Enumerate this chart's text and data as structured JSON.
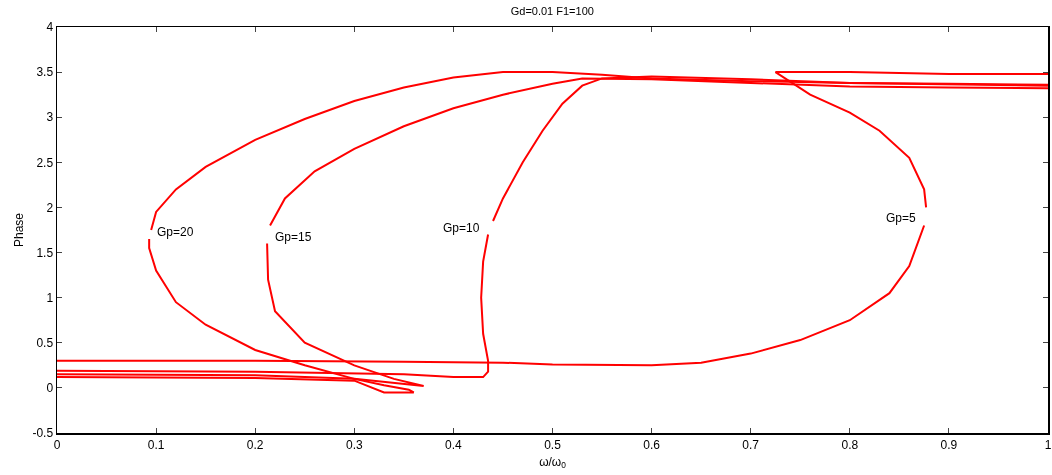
{
  "chart_data": {
    "type": "line",
    "title": "Gd=0.01 F1=100",
    "xlabel": "ω/ω$_{0}$",
    "ylabel": "Phase",
    "xlim": [
      0,
      1
    ],
    "xticks": [
      0,
      0.1,
      0.2,
      0.3,
      0.4,
      0.5,
      0.6,
      0.7,
      0.8,
      0.9,
      1
    ],
    "ylim": [
      -0.5,
      4
    ],
    "yticks": [
      -0.5,
      0,
      0.5,
      1,
      1.5,
      2,
      2.5,
      3,
      3.5,
      4
    ],
    "grid": false,
    "marker": "none",
    "line_style": "solid",
    "series": [
      {
        "color": "#ff0000",
        "x": [
          0,
          0.2,
          0.3,
          0.33,
          0.36,
          0.355,
          0.33,
          0.3,
          0.25,
          0.2,
          0.15,
          0.12,
          0.1,
          0.093,
          0.093,
          null,
          0.095,
          0.1,
          0.12,
          0.15,
          0.2,
          0.25,
          0.3,
          0.35,
          0.4,
          0.45,
          0.5,
          0.55,
          0.6,
          0.7,
          0.8,
          0.9,
          1
        ],
        "values": [
          0.12,
          0.11,
          0.08,
          -0.05,
          -0.05,
          -0.02,
          0.03,
          0.1,
          0.25,
          0.42,
          0.7,
          0.95,
          1.3,
          1.55,
          1.65,
          null,
          1.75,
          1.95,
          2.2,
          2.45,
          2.75,
          2.98,
          3.18,
          3.33,
          3.44,
          3.5,
          3.5,
          3.47,
          3.43,
          3.4,
          3.38,
          3.37,
          3.36
        ]
      },
      {
        "color": "#ff0000",
        "x": [
          0,
          0.2,
          0.3,
          0.37,
          0.34,
          0.3,
          0.25,
          0.22,
          0.213,
          0.212,
          null,
          0.215,
          0.23,
          0.26,
          0.3,
          0.35,
          0.4,
          0.45,
          0.5,
          0.53,
          0.6,
          0.7,
          0.8,
          0.9,
          1
        ],
        "values": [
          0.15,
          0.14,
          0.1,
          0.02,
          0.1,
          0.25,
          0.5,
          0.85,
          1.2,
          1.6,
          null,
          1.8,
          2.1,
          2.4,
          2.65,
          2.9,
          3.1,
          3.25,
          3.37,
          3.43,
          3.42,
          3.38,
          3.34,
          3.33,
          3.32
        ]
      },
      {
        "color": "#ff0000",
        "x": [
          0,
          0.2,
          0.35,
          0.4,
          0.43,
          0.435,
          0.435,
          0.43,
          0.428,
          0.43,
          0.435,
          null,
          0.44,
          0.45,
          0.47,
          0.49,
          0.51,
          0.53,
          0.55,
          0.6,
          0.7,
          0.8,
          1
        ],
        "values": [
          0.19,
          0.18,
          0.15,
          0.12,
          0.12,
          0.18,
          0.3,
          0.6,
          1.0,
          1.4,
          1.7,
          null,
          1.85,
          2.1,
          2.5,
          2.85,
          3.15,
          3.35,
          3.43,
          3.45,
          3.42,
          3.38,
          3.35
        ]
      },
      {
        "color": "#ff0000",
        "x": [
          0,
          0.2,
          0.35,
          0.45,
          0.5,
          0.6,
          0.65,
          0.7,
          0.75,
          0.8,
          0.84,
          0.86,
          0.875,
          null,
          0.877,
          0.875,
          0.86,
          0.83,
          0.8,
          0.76,
          0.725,
          0.8,
          0.9,
          1
        ],
        "values": [
          0.3,
          0.3,
          0.29,
          0.28,
          0.26,
          0.25,
          0.28,
          0.38,
          0.53,
          0.75,
          1.05,
          1.35,
          1.8,
          null,
          2.0,
          2.2,
          2.55,
          2.85,
          3.05,
          3.25,
          3.5,
          3.5,
          3.48,
          3.48
        ]
      }
    ],
    "annotations": [
      {
        "text": "Gp=20",
        "x": 0.093,
        "y": 1.65
      },
      {
        "text": "Gp=15",
        "x": 0.212,
        "y": 1.6
      },
      {
        "text": "Gp=10",
        "x": 0.435,
        "y": 1.7
      },
      {
        "text": "Gp=5",
        "x": 0.875,
        "y": 1.8
      }
    ]
  }
}
